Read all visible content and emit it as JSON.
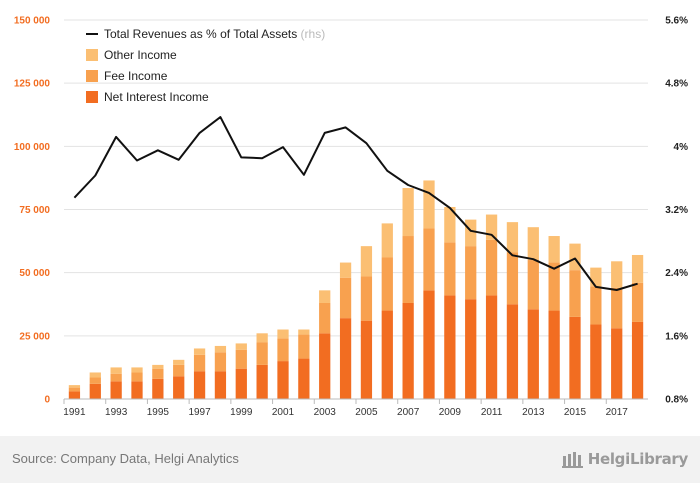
{
  "chart_data": {
    "type": "bar",
    "stacked": true,
    "x": [
      1991,
      1992,
      1993,
      1994,
      1995,
      1996,
      1997,
      1998,
      1999,
      2000,
      2001,
      2002,
      2003,
      2004,
      2005,
      2006,
      2007,
      2008,
      2009,
      2010,
      2011,
      2012,
      2013,
      2014,
      2015,
      2016,
      2017,
      2018
    ],
    "x_tick_labels": [
      "1991",
      "1993",
      "1995",
      "1997",
      "1999",
      "2001",
      "2003",
      "2005",
      "2007",
      "2009",
      "2011",
      "2013",
      "2015",
      "2017"
    ],
    "series": [
      {
        "name": "Net Interest Income",
        "axis": "left",
        "color": "#f26d21",
        "values": [
          3000,
          6000,
          7000,
          7000,
          8000,
          9000,
          11000,
          11000,
          12000,
          13500,
          15000,
          16000,
          26000,
          32000,
          31000,
          35000,
          38000,
          43000,
          41000,
          39500,
          41000,
          37500,
          35500,
          35000,
          32500,
          29500,
          28000,
          30500
        ]
      },
      {
        "name": "Fee Income",
        "axis": "left",
        "color": "#f8a14f",
        "values": [
          1500,
          2500,
          3000,
          3500,
          4000,
          4500,
          6500,
          7500,
          7500,
          9000,
          9000,
          9500,
          12000,
          16000,
          17500,
          21000,
          26500,
          24500,
          21000,
          21000,
          22000,
          20500,
          19500,
          19000,
          18500,
          15000,
          16000,
          15500
        ]
      },
      {
        "name": "Other Income",
        "axis": "left",
        "color": "#fbbf73",
        "values": [
          1000,
          2000,
          2500,
          2000,
          1500,
          2000,
          2500,
          2500,
          2500,
          3500,
          3500,
          2000,
          5000,
          6000,
          12000,
          13500,
          19000,
          19000,
          14000,
          10500,
          10000,
          12000,
          13000,
          10500,
          10500,
          7500,
          10500,
          11000
        ]
      },
      {
        "name": "Total Revenues as % of Total Assets",
        "axis": "right",
        "type": "line",
        "color": "#111111",
        "values": [
          3.35,
          3.63,
          4.12,
          3.82,
          3.95,
          3.83,
          4.17,
          4.37,
          3.86,
          3.85,
          3.99,
          3.64,
          4.17,
          4.24,
          4.04,
          3.69,
          3.51,
          3.41,
          3.22,
          2.93,
          2.88,
          2.62,
          2.57,
          2.45,
          2.58,
          2.22,
          2.18,
          2.26
        ]
      }
    ],
    "legend": [
      "Total Revenues as % of Total Assets",
      "Other Income",
      "Fee Income",
      "Net Interest Income"
    ],
    "legend_rhs_note": "(rhs)",
    "legend_position": "top-left",
    "ylim_left": [
      0,
      150000
    ],
    "yticks_left": [
      0,
      25000,
      50000,
      75000,
      100000,
      125000,
      150000
    ],
    "ytick_labels_left": [
      "0",
      "25 000",
      "50 000",
      "75 000",
      "100 000",
      "125 000",
      "150 000"
    ],
    "ylim_right": [
      0.8,
      5.6
    ],
    "yticks_right": [
      0.8,
      1.6,
      2.4,
      3.2,
      4.0,
      4.8,
      5.6
    ],
    "ytick_labels_right": [
      "0.8%",
      "1.6%",
      "2.4%",
      "3.2%",
      "4%",
      "4.8%",
      "5.6%"
    ],
    "grid": true
  },
  "footer": {
    "source": "Source: Company Data, Helgi Analytics",
    "brand": "HelgiLibrary"
  }
}
